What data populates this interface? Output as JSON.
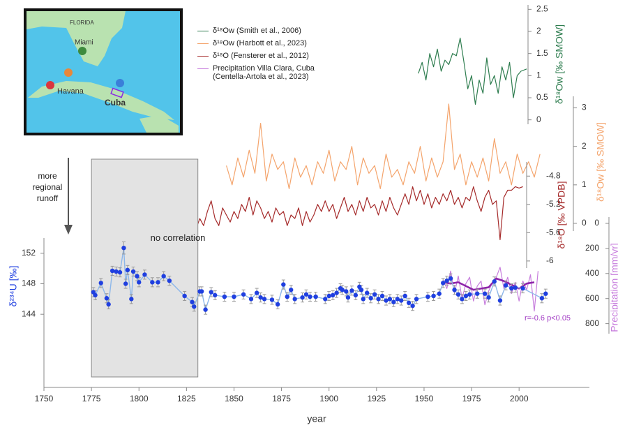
{
  "map": {
    "labels": [
      "FLORIDA",
      "Miami",
      "Havana",
      "Cuba"
    ]
  },
  "annotations": [
    "more regional runoff"
  ],
  "chart_data": [
    {
      "type": "line",
      "ylabel": "δ¹⁸Ow [‰ SMOW]",
      "xlim": [
        1750,
        2037
      ],
      "ylim": [
        -0.1,
        2.6
      ],
      "yticks": [
        0,
        0.5,
        1,
        1.5,
        2,
        2.5
      ],
      "series": [
        {
          "name": "δ¹⁸Ow (Smith et al., 2006)",
          "color": "#2e7d4f",
          "x": [
            1947,
            1949,
            1951,
            1953,
            1955,
            1957,
            1959,
            1961,
            1963,
            1965,
            1967,
            1969,
            1971,
            1973,
            1975,
            1977,
            1979,
            1981,
            1983,
            1985,
            1987,
            1989,
            1991,
            1993,
            1995,
            1997,
            1999,
            2001,
            2004
          ],
          "values": [
            1.05,
            1.3,
            0.9,
            1.5,
            1.2,
            1.6,
            1.1,
            1.35,
            1.25,
            1.5,
            1.45,
            1.85,
            1.3,
            0.7,
            1.0,
            0.35,
            0.9,
            0.6,
            1.4,
            0.8,
            1.0,
            0.6,
            1.2,
            0.9,
            1.3,
            0.5,
            1.0,
            1.1,
            1.15
          ]
        }
      ]
    },
    {
      "type": "line",
      "ylabel": "δ¹⁸Ow [‰ SMOW]",
      "xlim": [
        1750,
        2037
      ],
      "ylim": [
        -0.2,
        3.3
      ],
      "yticks": [
        0,
        1,
        2,
        3
      ],
      "series": [
        {
          "name": "δ¹⁸Ow (Harbott et al., 2023)",
          "color": "#f4a46c",
          "x": [
            1846,
            1849,
            1852,
            1855,
            1858,
            1861,
            1864,
            1867,
            1870,
            1873,
            1876,
            1879,
            1882,
            1885,
            1888,
            1891,
            1894,
            1897,
            1900,
            1903,
            1906,
            1909,
            1912,
            1915,
            1918,
            1921,
            1924,
            1927,
            1930,
            1933,
            1936,
            1939,
            1942,
            1945,
            1948,
            1951,
            1954,
            1957,
            1960,
            1963,
            1966,
            1969,
            1972,
            1975,
            1978,
            1981,
            1984,
            1987,
            1990,
            1993,
            1996,
            1999,
            2002,
            2005,
            2008,
            2011
          ],
          "values": [
            1.5,
            1.0,
            1.7,
            1.2,
            1.9,
            1.3,
            2.6,
            1.1,
            1.8,
            1.4,
            1.6,
            0.9,
            1.7,
            1.2,
            1.5,
            1.0,
            1.6,
            1.3,
            1.9,
            1.1,
            1.6,
            1.4,
            2.0,
            1.0,
            1.7,
            1.3,
            1.5,
            0.9,
            1.8,
            1.2,
            1.4,
            1.0,
            1.6,
            1.3,
            2.0,
            1.1,
            1.7,
            1.2,
            1.6,
            3.1,
            1.4,
            1.8,
            1.0,
            1.6,
            1.2,
            1.7,
            1.1,
            2.2,
            1.3,
            1.6,
            1.0,
            1.8,
            1.3,
            1.6,
            1.2,
            1.8
          ]
        }
      ]
    },
    {
      "type": "line",
      "ylabel": "δ¹⁸O [‰ VPDB]",
      "xlim": [
        1750,
        2037
      ],
      "ylim": [
        -6.1,
        -4.6
      ],
      "yticks": [
        -4.8,
        -5.2,
        -5.6,
        -6
      ],
      "series": [
        {
          "name": "δ¹⁸O (Fensterer et al., 2012)",
          "color": "#a52a2a",
          "x": [
            1776,
            1778,
            1780,
            1782,
            1784,
            1786,
            1788,
            1790,
            1792,
            1794,
            1796,
            1798,
            1800,
            1802,
            1804,
            1806,
            1808,
            1810,
            1812,
            1814,
            1816,
            1818,
            1820,
            1822,
            1824,
            1826,
            1828,
            1830,
            1832,
            1834,
            1836,
            1838,
            1840,
            1842,
            1844,
            1846,
            1848,
            1850,
            1852,
            1854,
            1856,
            1858,
            1860,
            1862,
            1864,
            1866,
            1868,
            1870,
            1872,
            1874,
            1876,
            1878,
            1880,
            1882,
            1884,
            1886,
            1888,
            1890,
            1892,
            1894,
            1896,
            1898,
            1900,
            1902,
            1904,
            1906,
            1908,
            1910,
            1912,
            1914,
            1916,
            1918,
            1920,
            1922,
            1924,
            1926,
            1928,
            1930,
            1932,
            1934,
            1936,
            1938,
            1940,
            1942,
            1944,
            1946,
            1948,
            1950,
            1952,
            1954,
            1956,
            1958,
            1960,
            1962,
            1964,
            1966,
            1968,
            1970,
            1972,
            1974,
            1976,
            1978,
            1980,
            1982,
            1984,
            1986,
            1988,
            1990,
            1992,
            1994,
            1996,
            1998,
            2000,
            2002
          ],
          "values": [
            -5.55,
            -5.35,
            -5.6,
            -5.3,
            -5.5,
            -5.35,
            -5.45,
            -5.35,
            -5.75,
            -5.5,
            -5.4,
            -5.5,
            -5.35,
            -5.55,
            -5.3,
            -5.4,
            -5.55,
            -5.45,
            -5.5,
            -5.2,
            -5.55,
            -5.5,
            -5.4,
            -5.45,
            -5.6,
            -5.5,
            -5.65,
            -5.55,
            -5.4,
            -5.5,
            -5.3,
            -5.15,
            -5.4,
            -5.5,
            -5.25,
            -5.35,
            -5.45,
            -5.3,
            -5.4,
            -5.2,
            -5.3,
            -5.1,
            -5.35,
            -5.15,
            -5.25,
            -5.4,
            -5.3,
            -5.45,
            -5.25,
            -5.35,
            -5.3,
            -5.5,
            -5.35,
            -5.4,
            -5.25,
            -5.5,
            -5.3,
            -5.45,
            -5.35,
            -5.2,
            -5.3,
            -5.15,
            -5.3,
            -5.2,
            -5.4,
            -5.25,
            -5.1,
            -5.3,
            -5.2,
            -5.35,
            -5.15,
            -5.3,
            -5.1,
            -5.25,
            -5.2,
            -5.35,
            -5.15,
            -5.3,
            -5.1,
            -5.25,
            -5.35,
            -5.2,
            -5.05,
            -5.2,
            -4.95,
            -5.15,
            -5.0,
            -5.2,
            -5.05,
            -5.25,
            -5.1,
            -5.2,
            -5.05,
            -5.15,
            -5.0,
            -5.2,
            -5.1,
            -5.25,
            -5.1,
            -5.15,
            -4.95,
            -5.15,
            -5.3,
            -5.1,
            -5.0,
            -5.2,
            -5.15,
            -5.7,
            -5.1,
            -5.0,
            -5.0,
            -4.95,
            -4.97,
            -4.95
          ]
        }
      ]
    },
    {
      "type": "line",
      "ylabel": "Precipitation [mm/yr]",
      "xlim": [
        1750,
        2037
      ],
      "ylim": [
        -50,
        880
      ],
      "inverted": true,
      "yticks": [
        0,
        200,
        400,
        600,
        800
      ],
      "annotation": "r=-0.6 p<0.05",
      "series": [
        {
          "name": "Precipitation Villa Clara, Cuba (Centella-Artola et al., 2023)",
          "color": "#c77ddd",
          "x": [
            1960,
            1962,
            1964,
            1966,
            1968,
            1970,
            1972,
            1974,
            1976,
            1978,
            1980,
            1982,
            1984,
            1986,
            1988,
            1990,
            1992,
            1994,
            1996,
            1998,
            2000,
            2002,
            2004,
            2006,
            2008,
            2010
          ],
          "values": [
            450,
            520,
            380,
            560,
            420,
            600,
            480,
            430,
            620,
            500,
            460,
            650,
            540,
            470,
            430,
            350,
            520,
            430,
            560,
            470,
            620,
            460,
            530,
            410,
            700,
            380
          ]
        },
        {
          "color": "#8e24aa",
          "bold": true,
          "x": [
            1960,
            1964,
            1968,
            1972,
            1976,
            1980,
            1984,
            1988,
            1992,
            1996,
            2000,
            2004,
            2008
          ],
          "values": [
            470,
            480,
            470,
            500,
            530,
            520,
            510,
            440,
            460,
            490,
            520,
            480,
            470
          ]
        }
      ]
    },
    {
      "type": "scatter",
      "ylabel": "δ²³⁴U [‰]",
      "xlabel": "year",
      "xlim": [
        1750,
        2037
      ],
      "ylim": [
        134.4,
        154
      ],
      "yticks": [
        144,
        148,
        152
      ],
      "xticks": [
        1750,
        1775,
        1800,
        1825,
        1850,
        1875,
        1900,
        1925,
        1950,
        1975,
        2000
      ],
      "line_color": "#8db7ea",
      "highlight": {
        "x": [
          1775,
          1831
        ],
        "label": "no correlation"
      },
      "series": [
        {
          "color": "#1f3fe0",
          "x": [
            1776,
            1777,
            1780,
            1783,
            1784,
            1786,
            1788,
            1790,
            1792,
            1793,
            1794,
            1796,
            1797,
            1799,
            1800,
            1803,
            1807,
            1810,
            1813,
            1816,
            1824,
            1828,
            1829,
            1832,
            1833,
            1835,
            1838,
            1840,
            1845,
            1850,
            1855,
            1859,
            1862,
            1864,
            1866,
            1870,
            1873,
            1876,
            1878,
            1880,
            1882,
            1886,
            1888,
            1890,
            1893,
            1898,
            1900,
            1902,
            1904,
            1906,
            1907,
            1909,
            1910,
            1912,
            1914,
            1916,
            1917,
            1918,
            1920,
            1922,
            1924,
            1926,
            1928,
            1930,
            1932,
            1934,
            1936,
            1938,
            1940,
            1942,
            1944,
            1946,
            1952,
            1955,
            1958,
            1960,
            1962,
            1964,
            1966,
            1968,
            1970,
            1972,
            1974,
            1978,
            1982,
            1984,
            1987,
            1990,
            1993,
            1996,
            1998,
            2002,
            2012,
            2014
          ],
          "values": [
            146.9,
            146.5,
            148.1,
            146.1,
            145.3,
            149.7,
            149.6,
            149.5,
            152.7,
            148.0,
            149.8,
            146.0,
            149.6,
            149.0,
            148.2,
            149.2,
            148.2,
            148.2,
            149.0,
            148.4,
            146.4,
            145.6,
            145.0,
            147.0,
            147.0,
            144.6,
            146.9,
            146.5,
            146.3,
            146.3,
            146.6,
            146.0,
            146.8,
            146.2,
            146.0,
            145.9,
            145.3,
            147.9,
            146.3,
            147.2,
            146.0,
            146.2,
            146.6,
            146.3,
            146.3,
            146.0,
            146.4,
            146.5,
            146.8,
            147.4,
            147.2,
            147.0,
            146.2,
            147.1,
            146.5,
            147.6,
            147.2,
            146.0,
            146.8,
            146.1,
            146.6,
            146.0,
            146.4,
            145.8,
            146.0,
            145.6,
            146.0,
            145.8,
            146.4,
            145.5,
            145.1,
            146.0,
            146.3,
            146.4,
            146.7,
            148.1,
            148.4,
            148.7,
            147.2,
            146.6,
            146.0,
            146.4,
            146.6,
            146.7,
            146.7,
            146.2,
            148.3,
            145.8,
            147.8,
            147.4,
            147.5,
            147.4,
            146.1,
            146.7
          ],
          "errors": [
            0.6,
            0.6,
            0.6,
            0.6,
            0.6,
            0.6,
            0.6,
            0.6,
            0.8,
            0.6,
            0.6,
            0.6,
            0.6,
            0.6,
            0.6,
            0.6,
            0.6,
            0.6,
            0.6,
            0.6,
            0.6,
            0.6,
            0.6,
            0.6,
            0.6,
            0.6,
            0.6,
            0.6,
            0.6,
            0.6,
            0.6,
            0.6,
            0.6,
            0.6,
            0.6,
            0.6,
            0.6,
            0.6,
            0.6,
            0.6,
            0.6,
            0.6,
            0.6,
            0.6,
            0.6,
            0.6,
            0.6,
            0.6,
            0.6,
            0.6,
            0.6,
            0.6,
            0.6,
            0.6,
            0.6,
            0.6,
            0.6,
            0.6,
            0.6,
            0.6,
            0.6,
            0.6,
            0.6,
            0.6,
            0.6,
            0.6,
            0.6,
            0.6,
            0.6,
            0.6,
            0.6,
            0.6,
            0.6,
            0.6,
            0.6,
            0.6,
            0.6,
            0.6,
            0.6,
            0.6,
            0.6,
            0.6,
            0.6,
            0.6,
            0.6,
            0.6,
            0.6,
            0.6,
            0.6,
            0.6,
            0.6,
            0.6,
            0.6,
            0.6
          ]
        }
      ]
    }
  ]
}
